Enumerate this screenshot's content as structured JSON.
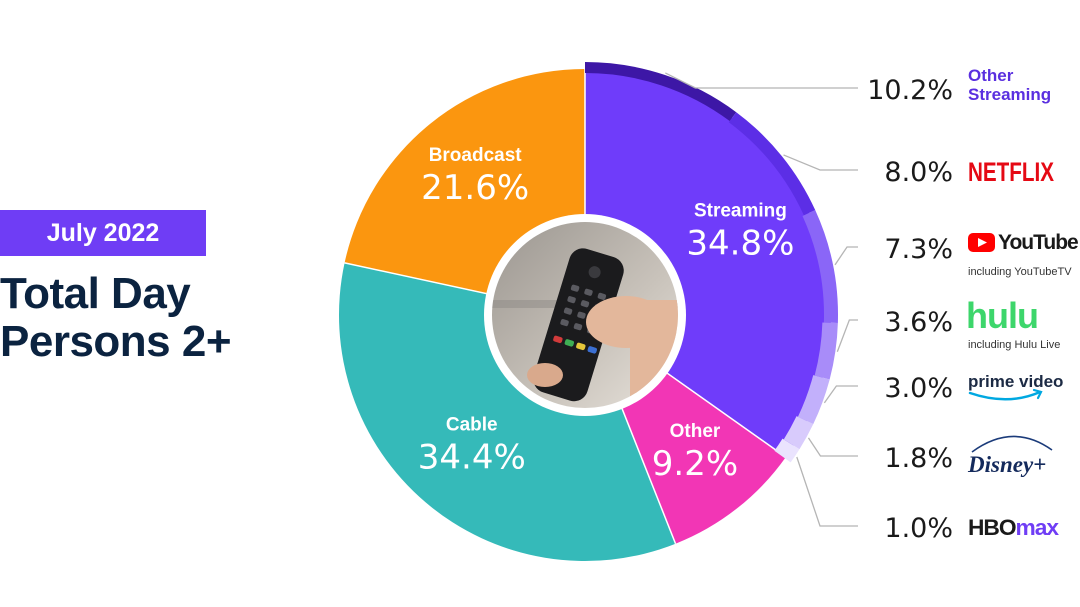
{
  "header": {
    "date_badge": "July 2022",
    "title_line1": "Total Day",
    "title_line2": "Persons 2+"
  },
  "center_image": {
    "description_icon": "tv-remote-icon"
  },
  "colors": {
    "badge": "#6f3df5",
    "title": "#0b2340",
    "leader": "#b5b5b5"
  },
  "chart_data": {
    "type": "pie",
    "title": "Total Day Persons 2+",
    "subtitle": "July 2022",
    "categories": [
      {
        "name": "Streaming",
        "value": 34.8,
        "label": "34.8%",
        "color": "#6f3cfa"
      },
      {
        "name": "Other",
        "value": 9.2,
        "label": "9.2%",
        "color": "#f236b5"
      },
      {
        "name": "Cable",
        "value": 34.4,
        "label": "34.4%",
        "color": "#35bab9"
      },
      {
        "name": "Broadcast",
        "value": 21.6,
        "label": "21.6%",
        "color": "#fb960f"
      }
    ],
    "streaming_breakdown": [
      {
        "name": "Other Streaming",
        "value": 10.2,
        "label": "10.2%",
        "brand_text": "Other\nStreaming",
        "note": "",
        "color": "#3d17a6"
      },
      {
        "name": "Netflix",
        "value": 8.0,
        "label": "8.0%",
        "brand_text": "NETFLIX",
        "note": "",
        "color": "#5c2ee6"
      },
      {
        "name": "YouTube",
        "value": 7.3,
        "label": "7.3%",
        "brand_text": "YouTube",
        "note": "including YouTubeTV",
        "color": "#8a66f7"
      },
      {
        "name": "Hulu",
        "value": 3.6,
        "label": "3.6%",
        "brand_text": "hulu",
        "note": "including Hulu Live",
        "color": "#a88cf9"
      },
      {
        "name": "Prime Video",
        "value": 3.0,
        "label": "3.0%",
        "brand_text": "prime video",
        "note": "",
        "color": "#c2b0fb"
      },
      {
        "name": "Disney+",
        "value": 1.8,
        "label": "1.8%",
        "brand_text": "Disney+",
        "note": "",
        "color": "#d8cbfc"
      },
      {
        "name": "HBO Max",
        "value": 1.0,
        "label": "1.0%",
        "brand_text": "HBOmax",
        "note": "",
        "color": "#eae3fe"
      }
    ]
  }
}
